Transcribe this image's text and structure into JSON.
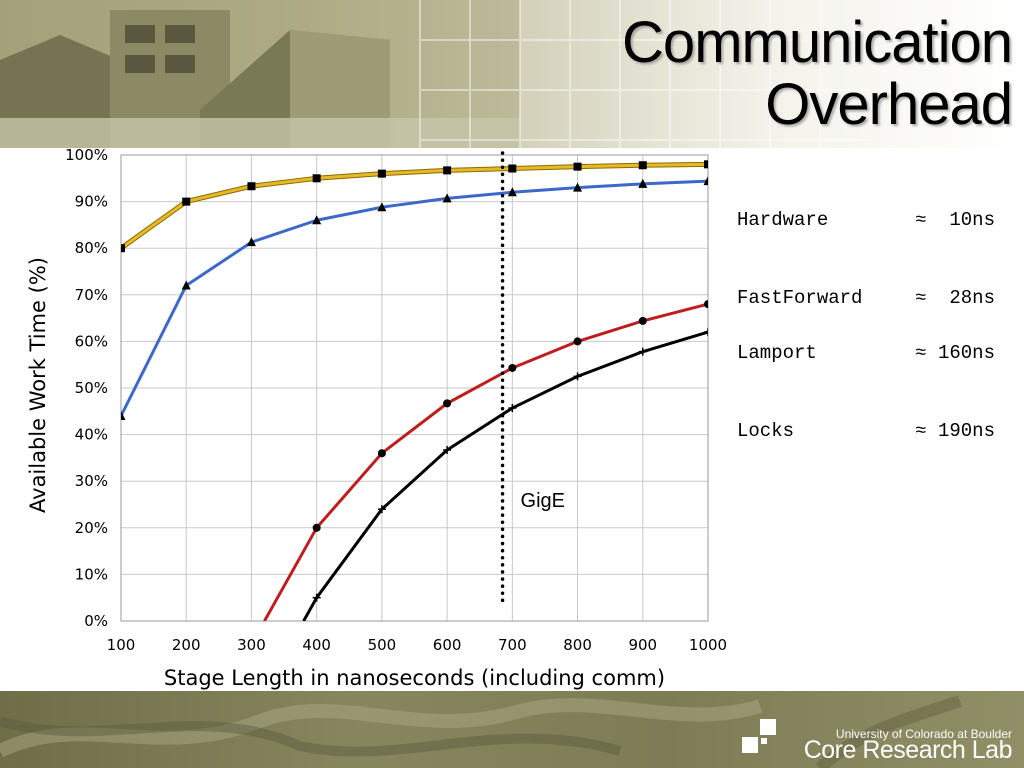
{
  "slide": {
    "title_line1": "Communication",
    "title_line2": "Overhead"
  },
  "legend_text": {
    "top": [
      {
        "name": "Hardware",
        "value": "≈  10ns"
      },
      {
        "name": "FastForward",
        "value": "≈  28ns"
      }
    ],
    "bottom": [
      {
        "name": "Lamport",
        "value": "≈ 160ns"
      },
      {
        "name": "Locks",
        "value": "≈ 190ns"
      }
    ]
  },
  "footer": {
    "organization": "University of Colorado at Boulder",
    "lab": "Core Research Lab"
  },
  "colors": {
    "hardware": "#e8b828",
    "fastforward": "#3b68c9",
    "lamport": "#be1e1e",
    "locks": "#000000",
    "grid": "#c8c8c8"
  },
  "chart_data": {
    "type": "line",
    "title": "",
    "xlabel": "Stage Length in nanoseconds (including comm)",
    "ylabel": "Available Work Time (%)",
    "xlim": [
      100,
      1000
    ],
    "ylim": [
      0,
      100
    ],
    "xticks": [
      100,
      200,
      300,
      400,
      500,
      600,
      700,
      800,
      900,
      1000
    ],
    "yticks": [
      "0%",
      "10%",
      "20%",
      "30%",
      "40%",
      "50%",
      "60%",
      "70%",
      "80%",
      "90%",
      "100%"
    ],
    "grid": true,
    "series": [
      {
        "key": "hardware",
        "marker": "square",
        "x": [
          100,
          200,
          300,
          400,
          500,
          600,
          700,
          800,
          900,
          1000
        ],
        "y": [
          80,
          90,
          93.3,
          95,
          96,
          96.7,
          97.1,
          97.5,
          97.8,
          98
        ]
      },
      {
        "key": "fastforward",
        "marker": "triangle",
        "x": [
          100,
          200,
          300,
          400,
          500,
          600,
          700,
          800,
          900,
          1000
        ],
        "y": [
          44,
          72,
          81.3,
          86,
          88.8,
          90.7,
          92,
          93,
          93.8,
          94.4
        ]
      },
      {
        "key": "lamport",
        "marker": "circle",
        "x": [
          320,
          400,
          500,
          600,
          700,
          800,
          900,
          1000
        ],
        "y": [
          0,
          20,
          36,
          46.7,
          54.3,
          60,
          64.4,
          68
        ]
      },
      {
        "key": "locks",
        "marker": "plus",
        "x": [
          380,
          400,
          500,
          600,
          700,
          800,
          900,
          1000
        ],
        "y": [
          0,
          5,
          24,
          36.7,
          45.7,
          52.5,
          57.8,
          62
        ]
      }
    ],
    "annotations": [
      {
        "type": "vline",
        "x": 685,
        "y_from": 3,
        "y_to": 100,
        "style": "dotted",
        "label": "GigE"
      }
    ]
  }
}
